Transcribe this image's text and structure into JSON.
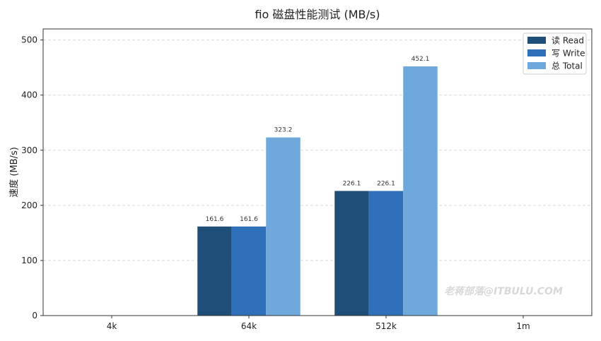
{
  "chart_data": {
    "type": "bar",
    "title": "fio 磁盘性能测试 (MB/s)",
    "xlabel": "",
    "ylabel": "速度 (MB/s)",
    "categories": [
      "4k",
      "64k",
      "512k",
      "1m"
    ],
    "series": [
      {
        "name": "读 Read",
        "values": [
          0,
          161.6,
          226.1,
          0
        ],
        "color": "#1f4e79",
        "labels": [
          "",
          "161.6",
          "226.1",
          ""
        ]
      },
      {
        "name": "写 Write",
        "values": [
          0,
          161.6,
          226.1,
          0
        ],
        "color": "#2e71ba",
        "labels": [
          "",
          "161.6",
          "226.1",
          ""
        ]
      },
      {
        "name": "总 Total",
        "values": [
          0,
          323.2,
          452.1,
          0
        ],
        "color": "#6fa8dc",
        "labels": [
          "",
          "323.2",
          "452.1",
          ""
        ]
      }
    ],
    "ylim": [
      0,
      520
    ],
    "yticks": [
      0,
      100,
      200,
      300,
      400,
      500
    ],
    "grid": true,
    "legend_position": "top-right"
  },
  "watermark": "老蒋部落@ITBULU.COM"
}
